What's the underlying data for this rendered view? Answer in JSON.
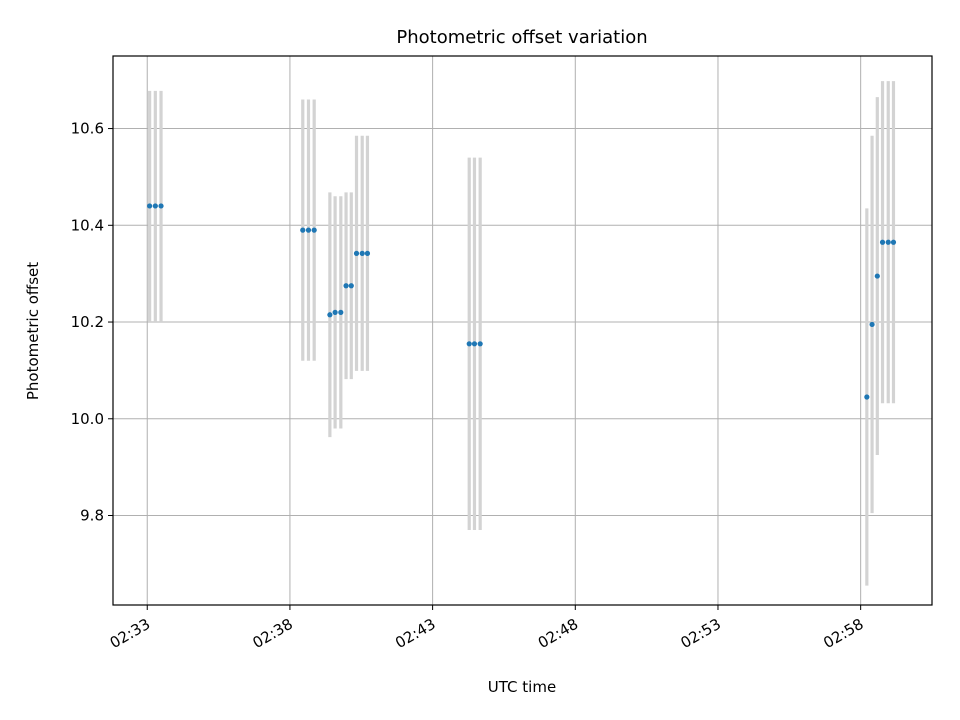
{
  "chart_data": {
    "type": "scatter",
    "title": "Photometric offset variation",
    "xlabel": "UTC time",
    "ylabel": "Photometric offset",
    "x_ticks": [
      "02:33",
      "02:38",
      "02:43",
      "02:48",
      "02:53",
      "02:58"
    ],
    "y_ticks": [
      "9.8",
      "10.0",
      "10.2",
      "10.4",
      "10.6"
    ],
    "xlim": [
      "02:31:48",
      "03:00:30"
    ],
    "ylim": [
      9.615,
      10.75
    ],
    "grid": true,
    "colors": {
      "point": "#1f77b4",
      "errorbar": "#d3d3d3",
      "grid": "#b0b0b0"
    },
    "points": [
      {
        "t": "02:33:05",
        "y": 10.44,
        "err": 0.238
      },
      {
        "t": "02:33:17",
        "y": 10.44,
        "err": 0.238
      },
      {
        "t": "02:33:29",
        "y": 10.44,
        "err": 0.238
      },
      {
        "t": "02:38:27",
        "y": 10.39,
        "err": 0.27
      },
      {
        "t": "02:38:39",
        "y": 10.39,
        "err": 0.27
      },
      {
        "t": "02:38:51",
        "y": 10.39,
        "err": 0.27
      },
      {
        "t": "02:39:24",
        "y": 10.215,
        "err": 0.253
      },
      {
        "t": "02:39:35",
        "y": 10.22,
        "err": 0.24
      },
      {
        "t": "02:39:47",
        "y": 10.22,
        "err": 0.24
      },
      {
        "t": "02:39:58",
        "y": 10.275,
        "err": 0.193
      },
      {
        "t": "02:40:09",
        "y": 10.275,
        "err": 0.193
      },
      {
        "t": "02:40:20",
        "y": 10.342,
        "err": 0.243
      },
      {
        "t": "02:40:32",
        "y": 10.342,
        "err": 0.243
      },
      {
        "t": "02:40:43",
        "y": 10.342,
        "err": 0.243
      },
      {
        "t": "02:44:17",
        "y": 10.155,
        "err": 0.385
      },
      {
        "t": "02:44:28",
        "y": 10.155,
        "err": 0.385
      },
      {
        "t": "02:44:40",
        "y": 10.155,
        "err": 0.385
      },
      {
        "t": "02:58:13",
        "y": 10.045,
        "err": 0.39
      },
      {
        "t": "02:58:24",
        "y": 10.195,
        "err": 0.39
      },
      {
        "t": "02:58:35",
        "y": 10.295,
        "err": 0.37
      },
      {
        "t": "02:58:46",
        "y": 10.365,
        "err": 0.333
      },
      {
        "t": "02:58:58",
        "y": 10.365,
        "err": 0.333
      },
      {
        "t": "02:59:09",
        "y": 10.365,
        "err": 0.333
      }
    ]
  }
}
